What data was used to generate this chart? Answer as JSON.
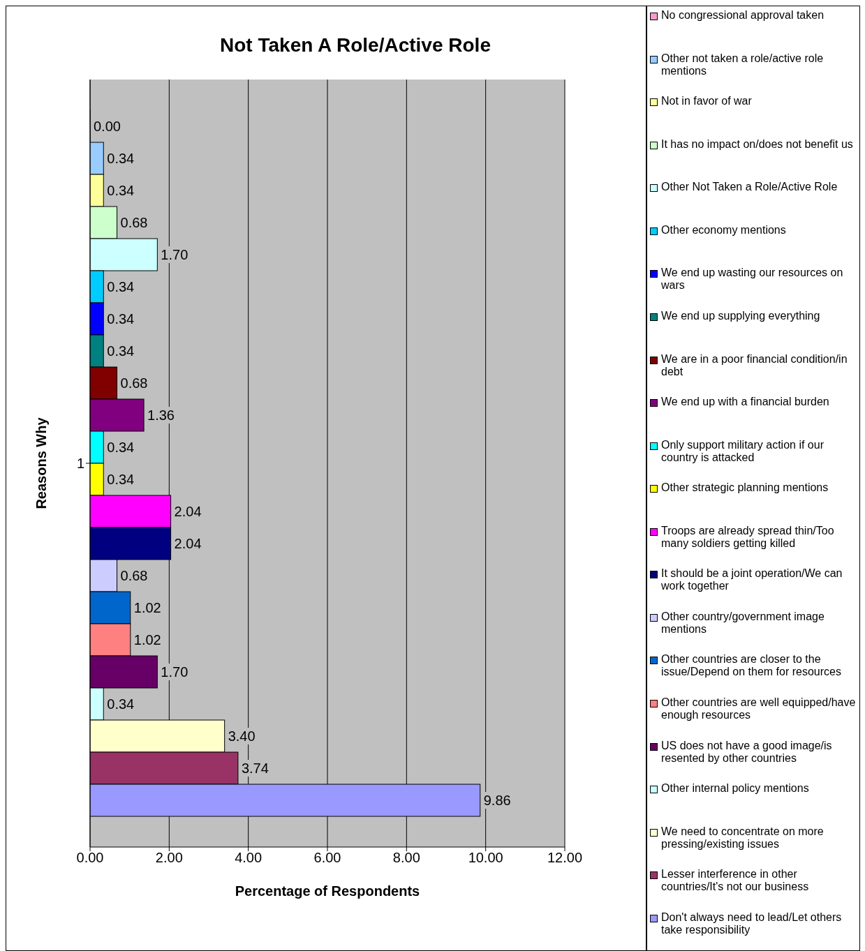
{
  "chart_data": {
    "type": "bar",
    "orientation": "horizontal",
    "title": "Not Taken A Role/Active Role",
    "xlabel": "Percentage of Respondents",
    "ylabel": "Reasons Why",
    "categories": [
      "1"
    ],
    "xlim": [
      0,
      12
    ],
    "xticks": [
      {
        "value": 0,
        "label": "0.00"
      },
      {
        "value": 2,
        "label": "2.00"
      },
      {
        "value": 4,
        "label": "4.00"
      },
      {
        "value": 6,
        "label": "6.00"
      },
      {
        "value": 8,
        "label": "8.00"
      },
      {
        "value": 10,
        "label": "10.00"
      },
      {
        "value": 12,
        "label": "12.00"
      }
    ],
    "grid": "x",
    "legend": "right",
    "series": [
      {
        "name": "No congressional approval taken",
        "color": "#ff99cc",
        "values": [
          0
        ],
        "value_labels": [
          "0.00"
        ]
      },
      {
        "name": "Other not taken a role/active role mentions",
        "color": "#99ccff",
        "values": [
          0.34
        ],
        "value_labels": [
          "0.34"
        ]
      },
      {
        "name": "Not in favor of war",
        "color": "#ffff99",
        "values": [
          0.34
        ],
        "value_labels": [
          "0.34"
        ]
      },
      {
        "name": "It has no impact on/does not benefit us",
        "color": "#ccffcc",
        "values": [
          0.68
        ],
        "value_labels": [
          "0.68"
        ]
      },
      {
        "name": "Other Not Taken a Role/Active Role",
        "color": "#ccffff",
        "values": [
          1.7
        ],
        "value_labels": [
          "1.70"
        ]
      },
      {
        "name": "Other economy mentions",
        "color": "#00ccff",
        "values": [
          0.34
        ],
        "value_labels": [
          "0.34"
        ]
      },
      {
        "name": "We end up wasting our resources on wars",
        "color": "#0000ff",
        "values": [
          0.34
        ],
        "value_labels": [
          "0.34"
        ]
      },
      {
        "name": "We end up supplying everything",
        "color": "#008080",
        "values": [
          0.34
        ],
        "value_labels": [
          "0.34"
        ]
      },
      {
        "name": "We are in a poor financial condition/in debt",
        "color": "#800000",
        "values": [
          0.68
        ],
        "value_labels": [
          "0.68"
        ]
      },
      {
        "name": "We end up with a financial burden",
        "color": "#800080",
        "values": [
          1.36
        ],
        "value_labels": [
          "1.36"
        ]
      },
      {
        "name": "Only support military action if our country is attacked",
        "color": "#00ffff",
        "values": [
          0.34
        ],
        "value_labels": [
          "0.34"
        ]
      },
      {
        "name": "Other strategic planning mentions",
        "color": "#ffff00",
        "values": [
          0.34
        ],
        "value_labels": [
          "0.34"
        ]
      },
      {
        "name": "Troops are already spread thin/Too many soldiers getting killed",
        "color": "#ff00ff",
        "values": [
          2.04
        ],
        "value_labels": [
          "2.04"
        ]
      },
      {
        "name": "It should be a joint operation/We can work together",
        "color": "#000080",
        "values": [
          2.04
        ],
        "value_labels": [
          "2.04"
        ]
      },
      {
        "name": "Other country/government image mentions",
        "color": "#ccccff",
        "values": [
          0.68
        ],
        "value_labels": [
          "0.68"
        ]
      },
      {
        "name": "Other countries are closer to the issue/Depend on them for resources",
        "color": "#0066cc",
        "values": [
          1.02
        ],
        "value_labels": [
          "1.02"
        ]
      },
      {
        "name": "Other countries are well equipped/have enough resources",
        "color": "#ff8080",
        "values": [
          1.02
        ],
        "value_labels": [
          "1.02"
        ]
      },
      {
        "name": "US does not have a good image/is resented by other countries",
        "color": "#660066",
        "values": [
          1.7
        ],
        "value_labels": [
          "1.70"
        ]
      },
      {
        "name": "Other internal policy mentions",
        "color": "#ccffff",
        "values": [
          0.34
        ],
        "value_labels": [
          "0.34"
        ]
      },
      {
        "name": "We need to concentrate on more pressing/existing issues",
        "color": "#ffffcc",
        "values": [
          3.4
        ],
        "value_labels": [
          "3.40"
        ]
      },
      {
        "name": "Lesser interference in other countries/It's not our business",
        "color": "#993366",
        "values": [
          3.74
        ],
        "value_labels": [
          "3.74"
        ]
      },
      {
        "name": "Don't always need to lead/Let others take responsibility",
        "color": "#9999ff",
        "values": [
          9.86
        ],
        "value_labels": [
          "9.86"
        ]
      }
    ]
  }
}
